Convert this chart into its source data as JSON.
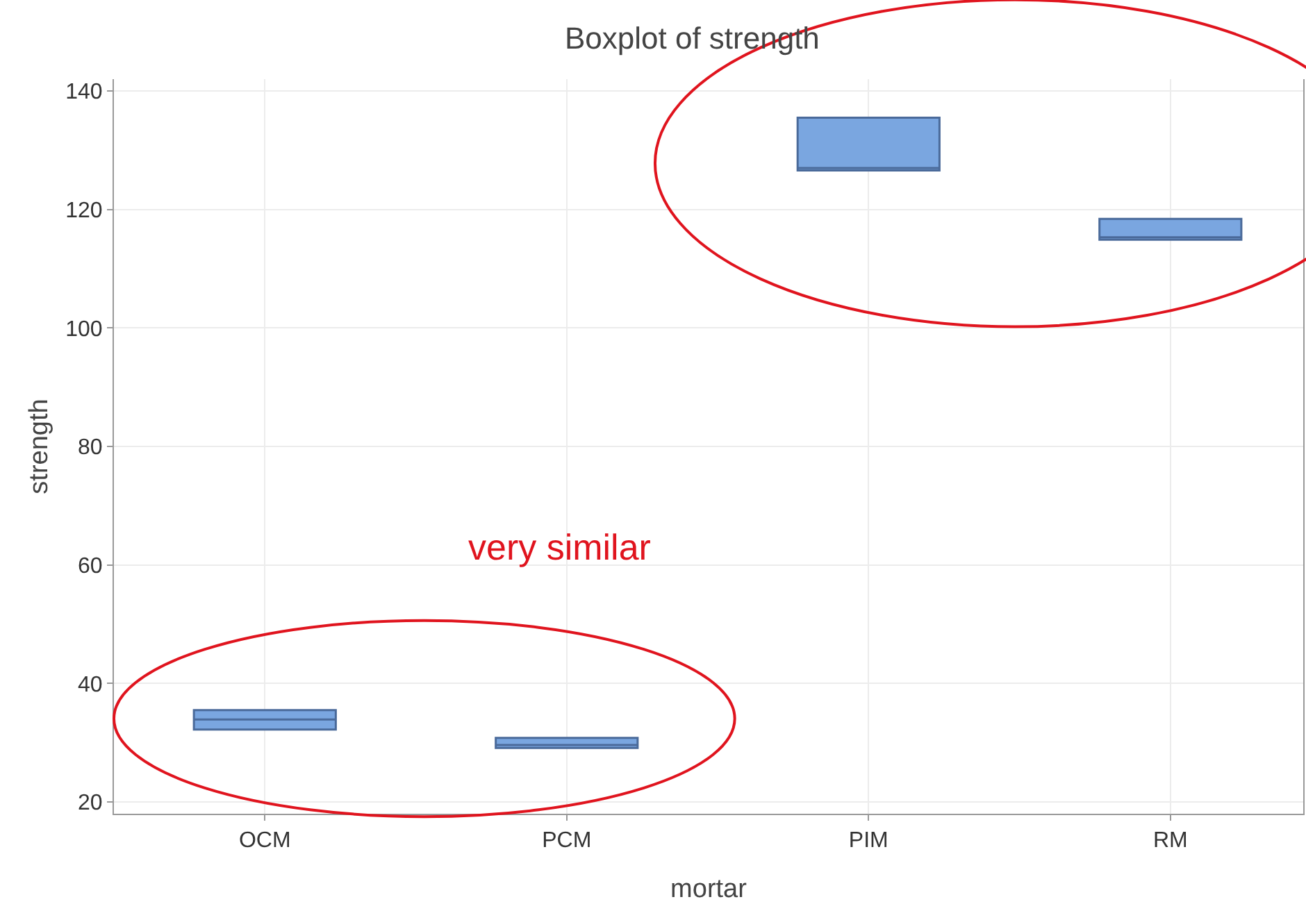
{
  "chart_data": {
    "type": "box",
    "title": "Boxplot of strength",
    "xlabel": "mortar",
    "ylabel": "strength",
    "categories": [
      "OCM",
      "PCM",
      "PIM",
      "RM"
    ],
    "series": [
      {
        "color": "#7aa6e0",
        "boxes": [
          {
            "low": 32.2,
            "q1": 32.2,
            "median": 33.9,
            "q3": 35.5,
            "high": 35.5
          },
          {
            "low": 29.1,
            "q1": 29.1,
            "median": 29.6,
            "q3": 30.8,
            "high": 30.8
          },
          {
            "low": 126.6,
            "q1": 126.6,
            "median": 127,
            "q3": 135.5,
            "high": 135.5
          },
          {
            "low": 114.9,
            "q1": 114.9,
            "median": 115.3,
            "q3": 118.4,
            "high": 118.4
          }
        ]
      }
    ],
    "ylim": [
      18,
      142
    ],
    "yticks": [
      20,
      40,
      60,
      80,
      100,
      120,
      140
    ],
    "grid": true,
    "annotations": [
      "very similar"
    ]
  }
}
